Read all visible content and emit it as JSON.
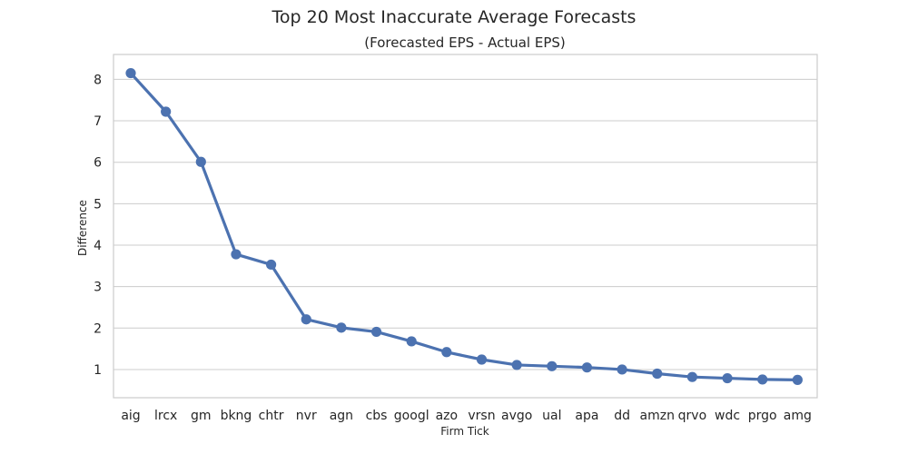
{
  "chart_data": {
    "type": "line",
    "title": "Top 20 Most Inaccurate Average Forecasts",
    "subtitle": "(Forecasted EPS - Actual EPS)",
    "xlabel": "Firm Tick",
    "ylabel": "Difference",
    "categories": [
      "aig",
      "lrcx",
      "gm",
      "bkng",
      "chtr",
      "nvr",
      "agn",
      "cbs",
      "googl",
      "azo",
      "vrsn",
      "avgo",
      "ual",
      "apa",
      "dd",
      "amzn",
      "qrvo",
      "wdc",
      "prgo",
      "amg"
    ],
    "values": [
      8.15,
      7.22,
      6.01,
      3.78,
      3.53,
      2.21,
      2.01,
      1.91,
      1.68,
      1.42,
      1.24,
      1.11,
      1.08,
      1.05,
      1.0,
      0.9,
      0.82,
      0.79,
      0.76,
      0.75
    ],
    "yticks": [
      1,
      2,
      3,
      4,
      5,
      6,
      7,
      8
    ],
    "ylim": [
      0.32,
      8.6
    ],
    "grid": true,
    "legend": "none",
    "color": "#4c72b0"
  }
}
